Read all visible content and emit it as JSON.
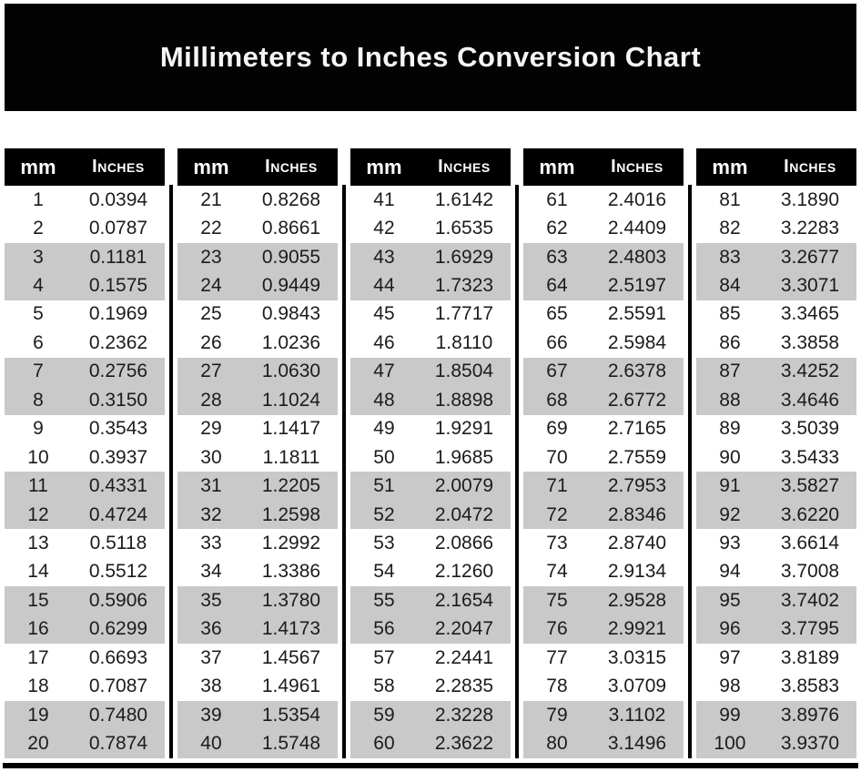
{
  "title_banner": {
    "title": "Millimeters to Inches Conversion Chart"
  },
  "colors": {
    "banner_bg": "#030303",
    "header_bg": "#000000",
    "header_text": "#ffffff",
    "shaded_row": "#c9c9c9",
    "row_text": "#1c1c1c",
    "divider": "#000000"
  },
  "chart_data": {
    "type": "table",
    "title": "Millimeters to Inches Conversion Chart",
    "column_headers": {
      "mm": "mm",
      "inches": "Inches"
    },
    "layout": {
      "column_groups": 5,
      "rows_per_group": 20,
      "shading": "rows shaded in alternating pairs (rows 3-4, 7-8, 11-12, 15-16, 19-20 of each group)"
    },
    "groups": [
      {
        "rows": [
          {
            "mm": "1",
            "in": "0.0394"
          },
          {
            "mm": "2",
            "in": "0.0787"
          },
          {
            "mm": "3",
            "in": "0.1181"
          },
          {
            "mm": "4",
            "in": "0.1575"
          },
          {
            "mm": "5",
            "in": "0.1969"
          },
          {
            "mm": "6",
            "in": "0.2362"
          },
          {
            "mm": "7",
            "in": "0.2756"
          },
          {
            "mm": "8",
            "in": "0.3150"
          },
          {
            "mm": "9",
            "in": "0.3543"
          },
          {
            "mm": "10",
            "in": "0.3937"
          },
          {
            "mm": "11",
            "in": "0.4331"
          },
          {
            "mm": "12",
            "in": "0.4724"
          },
          {
            "mm": "13",
            "in": "0.5118"
          },
          {
            "mm": "14",
            "in": "0.5512"
          },
          {
            "mm": "15",
            "in": "0.5906"
          },
          {
            "mm": "16",
            "in": "0.6299"
          },
          {
            "mm": "17",
            "in": "0.6693"
          },
          {
            "mm": "18",
            "in": "0.7087"
          },
          {
            "mm": "19",
            "in": "0.7480"
          },
          {
            "mm": "20",
            "in": "0.7874"
          }
        ]
      },
      {
        "rows": [
          {
            "mm": "21",
            "in": "0.8268"
          },
          {
            "mm": "22",
            "in": "0.8661"
          },
          {
            "mm": "23",
            "in": "0.9055"
          },
          {
            "mm": "24",
            "in": "0.9449"
          },
          {
            "mm": "25",
            "in": "0.9843"
          },
          {
            "mm": "26",
            "in": "1.0236"
          },
          {
            "mm": "27",
            "in": "1.0630"
          },
          {
            "mm": "28",
            "in": "1.1024"
          },
          {
            "mm": "29",
            "in": "1.1417"
          },
          {
            "mm": "30",
            "in": "1.1811"
          },
          {
            "mm": "31",
            "in": "1.2205"
          },
          {
            "mm": "32",
            "in": "1.2598"
          },
          {
            "mm": "33",
            "in": "1.2992"
          },
          {
            "mm": "34",
            "in": "1.3386"
          },
          {
            "mm": "35",
            "in": "1.3780"
          },
          {
            "mm": "36",
            "in": "1.4173"
          },
          {
            "mm": "37",
            "in": "1.4567"
          },
          {
            "mm": "38",
            "in": "1.4961"
          },
          {
            "mm": "39",
            "in": "1.5354"
          },
          {
            "mm": "40",
            "in": "1.5748"
          }
        ]
      },
      {
        "rows": [
          {
            "mm": "41",
            "in": "1.6142"
          },
          {
            "mm": "42",
            "in": "1.6535"
          },
          {
            "mm": "43",
            "in": "1.6929"
          },
          {
            "mm": "44",
            "in": "1.7323"
          },
          {
            "mm": "45",
            "in": "1.7717"
          },
          {
            "mm": "46",
            "in": "1.8110"
          },
          {
            "mm": "47",
            "in": "1.8504"
          },
          {
            "mm": "48",
            "in": "1.8898"
          },
          {
            "mm": "49",
            "in": "1.9291"
          },
          {
            "mm": "50",
            "in": "1.9685"
          },
          {
            "mm": "51",
            "in": "2.0079"
          },
          {
            "mm": "52",
            "in": "2.0472"
          },
          {
            "mm": "53",
            "in": "2.0866"
          },
          {
            "mm": "54",
            "in": "2.1260"
          },
          {
            "mm": "55",
            "in": "2.1654"
          },
          {
            "mm": "56",
            "in": "2.2047"
          },
          {
            "mm": "57",
            "in": "2.2441"
          },
          {
            "mm": "58",
            "in": "2.2835"
          },
          {
            "mm": "59",
            "in": "2.3228"
          },
          {
            "mm": "60",
            "in": "2.3622"
          }
        ]
      },
      {
        "rows": [
          {
            "mm": "61",
            "in": "2.4016"
          },
          {
            "mm": "62",
            "in": "2.4409"
          },
          {
            "mm": "63",
            "in": "2.4803"
          },
          {
            "mm": "64",
            "in": "2.5197"
          },
          {
            "mm": "65",
            "in": "2.5591"
          },
          {
            "mm": "66",
            "in": "2.5984"
          },
          {
            "mm": "67",
            "in": "2.6378"
          },
          {
            "mm": "68",
            "in": "2.6772"
          },
          {
            "mm": "69",
            "in": "2.7165"
          },
          {
            "mm": "70",
            "in": "2.7559"
          },
          {
            "mm": "71",
            "in": "2.7953"
          },
          {
            "mm": "72",
            "in": "2.8346"
          },
          {
            "mm": "73",
            "in": "2.8740"
          },
          {
            "mm": "74",
            "in": "2.9134"
          },
          {
            "mm": "75",
            "in": "2.9528"
          },
          {
            "mm": "76",
            "in": "2.9921"
          },
          {
            "mm": "77",
            "in": "3.0315"
          },
          {
            "mm": "78",
            "in": "3.0709"
          },
          {
            "mm": "79",
            "in": "3.1102"
          },
          {
            "mm": "80",
            "in": "3.1496"
          }
        ]
      },
      {
        "rows": [
          {
            "mm": "81",
            "in": "3.1890"
          },
          {
            "mm": "82",
            "in": "3.2283"
          },
          {
            "mm": "83",
            "in": "3.2677"
          },
          {
            "mm": "84",
            "in": "3.3071"
          },
          {
            "mm": "85",
            "in": "3.3465"
          },
          {
            "mm": "86",
            "in": "3.3858"
          },
          {
            "mm": "87",
            "in": "3.4252"
          },
          {
            "mm": "88",
            "in": "3.4646"
          },
          {
            "mm": "89",
            "in": "3.5039"
          },
          {
            "mm": "90",
            "in": "3.5433"
          },
          {
            "mm": "91",
            "in": "3.5827"
          },
          {
            "mm": "92",
            "in": "3.6220"
          },
          {
            "mm": "93",
            "in": "3.6614"
          },
          {
            "mm": "94",
            "in": "3.7008"
          },
          {
            "mm": "95",
            "in": "3.7402"
          },
          {
            "mm": "96",
            "in": "3.7795"
          },
          {
            "mm": "97",
            "in": "3.8189"
          },
          {
            "mm": "98",
            "in": "3.8583"
          },
          {
            "mm": "99",
            "in": "3.8976"
          },
          {
            "mm": "100",
            "in": "3.9370"
          }
        ]
      }
    ]
  }
}
